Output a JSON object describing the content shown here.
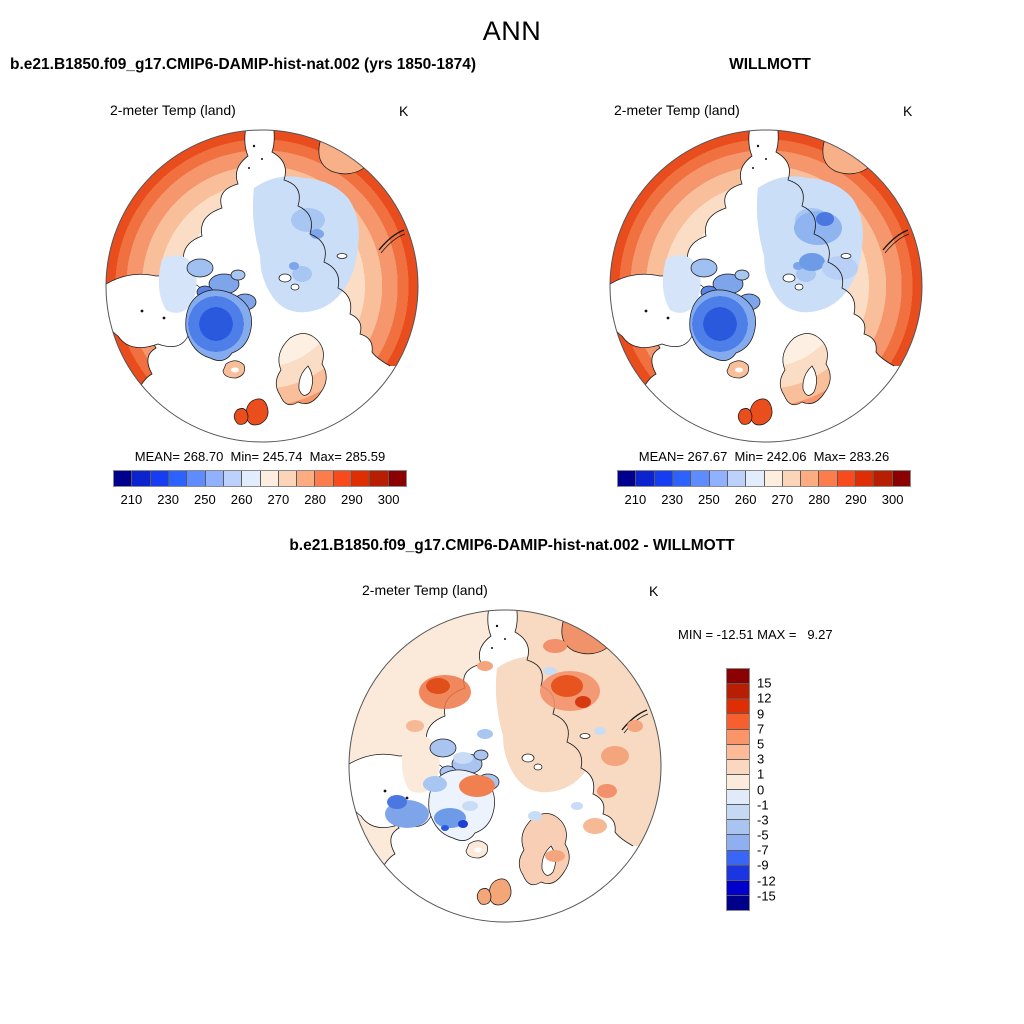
{
  "page_title": "ANN",
  "model_panel": {
    "case_title": "b.e21.B1850.f09_g17.CMIP6-DAMIP-hist-nat.002 (yrs 1850-1874)",
    "variable_label": "2-meter Temp (land)",
    "units": "K",
    "stats_line": "MEAN= 268.70  Min= 245.74  Max= 285.59"
  },
  "obs_panel": {
    "case_title": "WILLMOTT",
    "variable_label": "2-meter Temp (land)",
    "units": "K",
    "stats_line": "MEAN= 267.67  Min= 242.06  Max= 283.26"
  },
  "diff_panel": {
    "case_title": "b.e21.B1850.f09_g17.CMIP6-DAMIP-hist-nat.002 - WILLMOTT",
    "variable_label": "2-meter Temp (land)",
    "units": "K",
    "stats_line": "MIN = -12.51 MAX =   9.27"
  },
  "colorbar_absolute": {
    "orientation": "horizontal",
    "tick_labels": [
      "210",
      "230",
      "250",
      "260",
      "270",
      "280",
      "290",
      "300"
    ],
    "colors": [
      "#00008F",
      "#0B24CE",
      "#173DF2",
      "#2E62FF",
      "#5E8CFF",
      "#8FB1FF",
      "#BCD2FC",
      "#E1EDFC",
      "#FDEEDF",
      "#FCD5B8",
      "#FCAC80",
      "#FC7C4C",
      "#F74B1E",
      "#DF2D04",
      "#B81F02",
      "#8B0000"
    ]
  },
  "colorbar_difference": {
    "orientation": "vertical",
    "tick_labels": [
      "15",
      "12",
      "9",
      "7",
      "5",
      "3",
      "1",
      "0",
      "-1",
      "-3",
      "-5",
      "-7",
      "-9",
      "-12",
      "-15"
    ],
    "colors": [
      "#8B0000",
      "#B81F02",
      "#DF2D04",
      "#F7602E",
      "#FB9468",
      "#FCBA96",
      "#FAD7C0",
      "#FBEBDD",
      "#E0EAF8",
      "#C6D9F4",
      "#A9C4F0",
      "#8FB0F0",
      "#3A66F5",
      "#1B35E0",
      "#0000CD",
      "#00008B"
    ]
  },
  "chart_data": [
    {
      "type": "heatmap",
      "subtype": "north-polar-stereographic-map",
      "panel": "model",
      "season": "ANN",
      "title": "b.e21.B1850.f09_g17.CMIP6-DAMIP-hist-nat.002 (yrs 1850-1874)",
      "variable": "2-meter Temp (land)",
      "units": "K",
      "mean": 268.7,
      "min": 245.74,
      "max": 285.59,
      "contour_levels": [
        210,
        220,
        230,
        240,
        250,
        255,
        260,
        265,
        270,
        275,
        280,
        285,
        290,
        295,
        300
      ],
      "labeled_levels": [
        210,
        230,
        250,
        260,
        270,
        280,
        290,
        300
      ],
      "legend_position": "bottom"
    },
    {
      "type": "heatmap",
      "subtype": "north-polar-stereographic-map",
      "panel": "observation",
      "season": "ANN",
      "title": "WILLMOTT",
      "variable": "2-meter Temp (land)",
      "units": "K",
      "mean": 267.67,
      "min": 242.06,
      "max": 283.26,
      "contour_levels": [
        210,
        220,
        230,
        240,
        250,
        255,
        260,
        265,
        270,
        275,
        280,
        285,
        290,
        295,
        300
      ],
      "labeled_levels": [
        210,
        230,
        250,
        260,
        270,
        280,
        290,
        300
      ],
      "legend_position": "bottom"
    },
    {
      "type": "heatmap",
      "subtype": "north-polar-stereographic-map",
      "panel": "difference",
      "season": "ANN",
      "title": "b.e21.B1850.f09_g17.CMIP6-DAMIP-hist-nat.002 - WILLMOTT",
      "variable": "2-meter Temp (land)",
      "units": "K",
      "min": -12.51,
      "max": 9.27,
      "contour_levels": [
        -15,
        -12,
        -9,
        -7,
        -5,
        -3,
        -1,
        0,
        1,
        3,
        5,
        7,
        9,
        12,
        15
      ],
      "legend_position": "right"
    }
  ]
}
